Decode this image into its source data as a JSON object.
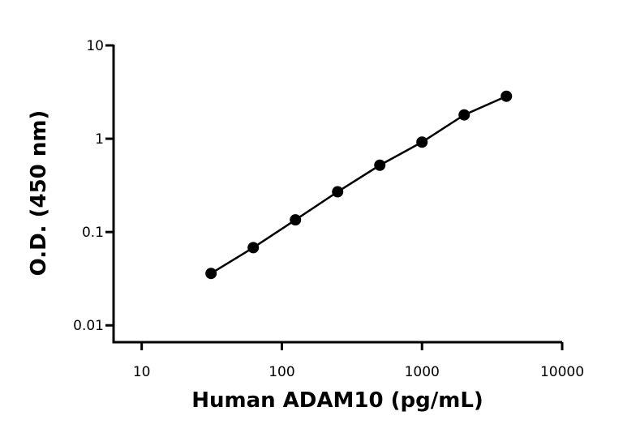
{
  "chart_data": {
    "type": "scatter",
    "x_label": "Human ADAM10 (pg/mL)",
    "y_label": "O.D. (450 nm)",
    "x": [
      31.25,
      62.5,
      125,
      250,
      500,
      1000,
      2000,
      4000
    ],
    "values": [
      0.036,
      0.068,
      0.135,
      0.27,
      0.52,
      0.92,
      1.8,
      2.85
    ],
    "color": "#000000",
    "x_log": true,
    "y_log": true,
    "xlim": [
      6.3,
      10000
    ],
    "ylim": [
      0.0066,
      10
    ],
    "xticks": [
      10,
      100,
      1000,
      10000
    ],
    "yticks": [
      0.01,
      0.1,
      1,
      10
    ]
  }
}
